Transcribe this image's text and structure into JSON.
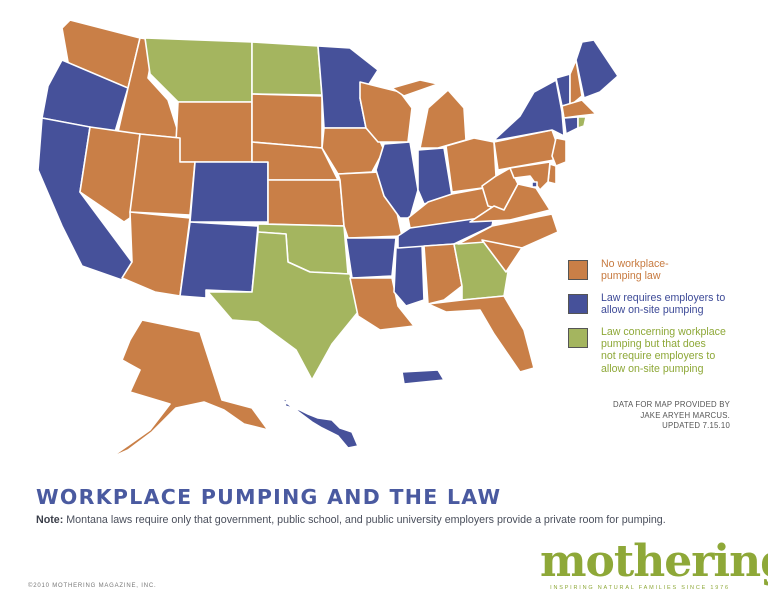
{
  "title": "WORKPLACE PUMPING AND THE LAW",
  "note": {
    "label": "Note:",
    "text": " Montana laws require only that government, public school, and public university employers provide a private room for pumping."
  },
  "legend": [
    {
      "key": "no_law",
      "text": "No workplace-\npumping law",
      "color": "#c97f47",
      "text_color": "#c77a3f"
    },
    {
      "key": "law_requires",
      "text": "Law requires employers to\nallow on-site pumping",
      "color": "#46519a",
      "text_color": "#3d4a97"
    },
    {
      "key": "law_concerning",
      "text": "Law concerning workplace\npumping but that does\nnot require employers to\nallow on-site pumping",
      "color": "#a4b55f",
      "text_color": "#8ea838"
    }
  ],
  "credit": "DATA FOR MAP PROVIDED BY\nJAKE ARYEH MARCUS.",
  "updated": "UPDATED 7.15.10",
  "logo": {
    "word": "mothering",
    "tagline": "INSPIRING NATURAL FAMILIES SINCE 1976"
  },
  "copyright": "©2010 MOTHERING MAGAZINE, INC.",
  "states": {
    "WA": "no_law",
    "OR": "law_requires",
    "CA": "law_requires",
    "ID": "no_law",
    "NV": "no_law",
    "MT": "law_concerning",
    "WY": "no_law",
    "UT": "no_law",
    "AZ": "no_law",
    "CO": "law_requires",
    "NM": "law_requires",
    "ND": "law_concerning",
    "SD": "no_law",
    "NE": "no_law",
    "KS": "no_law",
    "OK": "law_concerning",
    "TX": "law_concerning",
    "MN": "law_requires",
    "IA": "no_law",
    "MO": "no_law",
    "AR": "law_requires",
    "LA": "no_law",
    "WI": "no_law",
    "IL": "law_requires",
    "MS": "law_requires",
    "MI": "no_law",
    "IN": "law_requires",
    "KY": "no_law",
    "TN": "law_requires",
    "AL": "no_law",
    "GA": "law_concerning",
    "FL": "no_law",
    "OH": "no_law",
    "WV": "no_law",
    "VA": "no_law",
    "NC": "no_law",
    "SC": "no_law",
    "PA": "no_law",
    "NY": "law_requires",
    "VT": "law_requires",
    "NH": "no_law",
    "ME": "law_requires",
    "MA": "no_law",
    "RI": "law_concerning",
    "CT": "law_requires",
    "NJ": "no_law",
    "DE": "no_law",
    "MD": "no_law",
    "DC": "law_requires",
    "AK": "no_law",
    "HI": "law_requires",
    "PR": "law_requires"
  }
}
